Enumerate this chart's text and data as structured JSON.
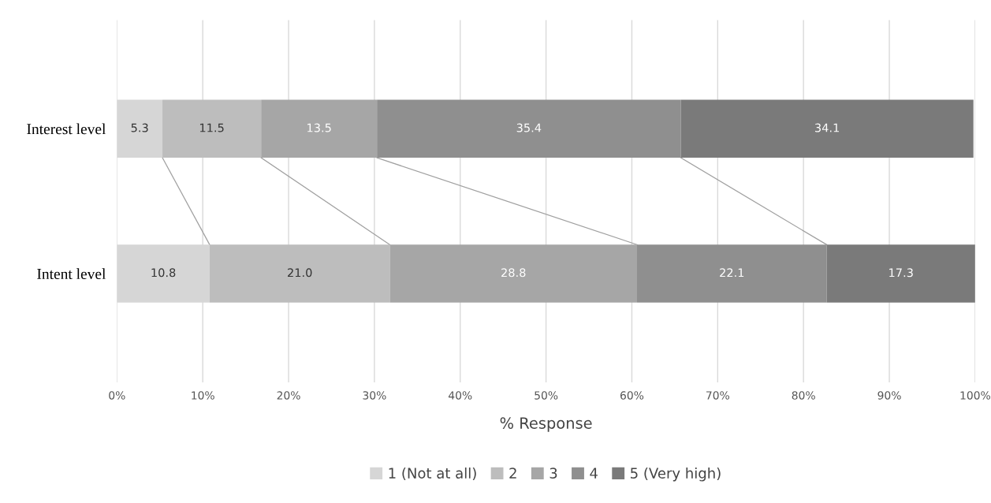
{
  "chart_data": {
    "type": "bar",
    "orientation": "horizontal",
    "stacked": true,
    "xlabel": "% Response",
    "categories": [
      "Interest level",
      "Intent level"
    ],
    "series": [
      {
        "name": "1 (Not at all)",
        "color": "#d6d6d6",
        "values": [
          5.3,
          10.8
        ],
        "value_labels": [
          "5.3",
          "10.8"
        ]
      },
      {
        "name": "2",
        "color": "#bdbdbd",
        "values": [
          11.5,
          21.0
        ],
        "value_labels": [
          "11.5",
          "21.0"
        ]
      },
      {
        "name": "3",
        "color": "#a6a6a6",
        "values": [
          13.5,
          28.8
        ],
        "value_labels": [
          "13.5",
          "28.8"
        ]
      },
      {
        "name": "4",
        "color": "#8f8f8f",
        "values": [
          35.4,
          22.1
        ],
        "value_labels": [
          "35.4",
          "22.1"
        ]
      },
      {
        "name": "5 (Very high)",
        "color": "#7a7a7a",
        "values": [
          34.1,
          17.3
        ],
        "value_labels": [
          "34.1",
          "17.3"
        ]
      }
    ],
    "xlim": [
      0,
      100
    ],
    "xticks": [
      {
        "value": 0,
        "label": "0%"
      },
      {
        "value": 10,
        "label": "10%"
      },
      {
        "value": 20,
        "label": "20%"
      },
      {
        "value": 30,
        "label": "30%"
      },
      {
        "value": 40,
        "label": "40%"
      },
      {
        "value": 50,
        "label": "50%"
      },
      {
        "value": 60,
        "label": "60%"
      },
      {
        "value": 70,
        "label": "70%"
      },
      {
        "value": 80,
        "label": "80%"
      },
      {
        "value": 90,
        "label": "90%"
      },
      {
        "value": 100,
        "label": "100%"
      }
    ],
    "grid": "x",
    "legend": "bottom"
  }
}
